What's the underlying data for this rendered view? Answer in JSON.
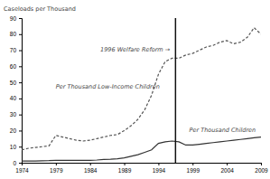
{
  "chart_data": {
    "type": "line",
    "ylabel": "Caseloads per Thousand",
    "x": [
      1974,
      1975,
      1976,
      1977,
      1978,
      1979,
      1980,
      1981,
      1982,
      1983,
      1984,
      1985,
      1986,
      1987,
      1988,
      1989,
      1990,
      1991,
      1992,
      1993,
      1994,
      1995,
      1996,
      1997,
      1998,
      1999,
      2000,
      2001,
      2002,
      2003,
      2004,
      2005,
      2006,
      2007,
      2008,
      2009
    ],
    "series": [
      {
        "color": "#555555",
        "line_style": "dashed",
        "values": [
          8,
          9,
          9.5,
          10,
          10.5,
          17,
          16,
          15,
          14,
          13.5,
          14,
          15,
          16,
          17,
          17.5,
          20,
          23,
          27,
          33,
          42,
          55,
          63,
          65,
          65,
          67,
          68,
          70,
          72,
          73,
          75,
          76,
          74,
          75,
          78,
          84,
          80
        ]
      },
      {
        "color": "#333333",
        "line_style": "solid",
        "values": [
          1,
          1,
          1,
          1.2,
          1.3,
          1.5,
          1.5,
          1.5,
          1.5,
          1.5,
          1.5,
          1.7,
          2,
          2.2,
          2.5,
          3,
          4,
          5,
          6.5,
          8,
          12,
          13,
          13.5,
          13,
          11,
          11,
          11.5,
          12,
          12.5,
          13,
          13.5,
          14,
          14.5,
          15,
          15.5,
          16
        ]
      }
    ],
    "vertical_line": {
      "x": 1996.5,
      "color": "#111111"
    },
    "annotations": [
      {
        "text": "1996 Welfare Reform →",
        "x": 1985.5,
        "y": 70
      },
      {
        "text": "Per Thousand Low-Income Children",
        "x": 1979,
        "y": 47
      },
      {
        "text": "Per Thousand Children",
        "x": 1998.5,
        "y": 20
      }
    ],
    "xlim": [
      1974,
      2009
    ],
    "ylim": [
      0,
      90
    ],
    "xticks": [
      1974,
      1979,
      1984,
      1989,
      1994,
      1999,
      2004,
      2009
    ],
    "yticks": [
      0,
      10,
      20,
      30,
      40,
      50,
      60,
      70,
      80,
      90
    ]
  }
}
